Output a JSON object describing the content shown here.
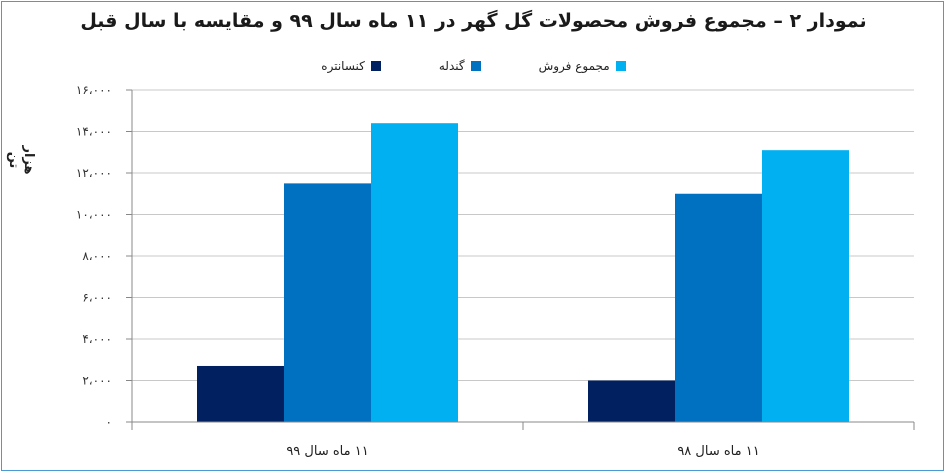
{
  "chart_data": {
    "type": "bar",
    "title": "نمودار ۲ – مجموع فروش محصولات گل گهر در ۱۱ ماه سال ۹۹ و مقایسه با سال قبل",
    "ylabel": "هزار تن",
    "xlabel": "",
    "ylim": [
      0,
      16000
    ],
    "yticks": [
      0,
      2000,
      4000,
      6000,
      8000,
      10000,
      12000,
      14000,
      16000
    ],
    "ytick_labels": [
      "۰",
      "۲،۰۰۰",
      "۴،۰۰۰",
      "۶،۰۰۰",
      "۸،۰۰۰",
      "۱۰،۰۰۰",
      "۱۲،۰۰۰",
      "۱۴،۰۰۰",
      "۱۶،۰۰۰"
    ],
    "categories": [
      "۱۱ ماه سال ۹۹",
      "۱۱ ماه سال ۹۸"
    ],
    "series": [
      {
        "name": "کنسانتره",
        "color": "#002060",
        "values": [
          2700,
          2000
        ]
      },
      {
        "name": "گندله",
        "color": "#0070c0",
        "values": [
          11500,
          11000
        ]
      },
      {
        "name": "مجموع فروش",
        "color": "#00b0f0",
        "values": [
          14400,
          13100
        ]
      }
    ],
    "legend_position": "top",
    "grid": true
  }
}
